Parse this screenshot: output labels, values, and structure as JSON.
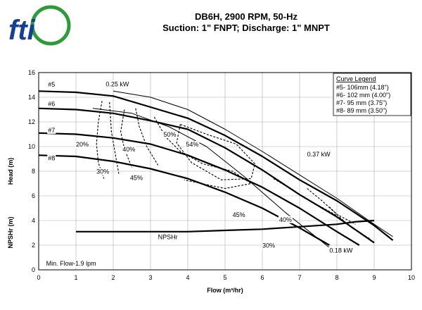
{
  "chart_data": {
    "type": "line",
    "title": "DB6H, 2900 RPM, 50-Hz",
    "subtitle": "Suction: 1\" FNPT; Discharge: 1\" MNPT",
    "xlabel": "Flow (m³/hr)",
    "ylabel": "Head (m)",
    "ylabel2": "NPSHr (m)",
    "xlim": [
      0,
      10
    ],
    "ylim": [
      0,
      16
    ],
    "xticks": [
      "0",
      "1",
      "2",
      "3",
      "4",
      "5",
      "6",
      "7",
      "8",
      "9",
      "10"
    ],
    "yticks": [
      "0",
      "2",
      "4",
      "6",
      "8",
      "10",
      "12",
      "14",
      "16"
    ],
    "grid": true,
    "legend": {
      "title": "Curve Legend",
      "entries": [
        "#5- 106mm (4.18\")",
        "#6- 102 mm (4.00\")",
        "#7- 95 mm (3.75\")",
        "#8- 89 mm (3.50\")"
      ]
    },
    "series": [
      {
        "name": "#5",
        "x": [
          0,
          1,
          2,
          3,
          4,
          5,
          6,
          7,
          8,
          9,
          9.5
        ],
        "y": [
          14.5,
          14.4,
          14.1,
          13.2,
          12.3,
          10.9,
          9.2,
          7.3,
          5.6,
          3.6,
          2.4
        ]
      },
      {
        "name": "#6",
        "x": [
          0,
          1,
          2,
          3,
          4,
          5,
          6,
          7,
          8,
          9
        ],
        "y": [
          13.1,
          13.0,
          12.7,
          12.1,
          11.4,
          9.9,
          8.1,
          6.1,
          4.3,
          2.2
        ]
      },
      {
        "name": "#7",
        "x": [
          0,
          1,
          2,
          3,
          4,
          5,
          6,
          7,
          8,
          8.6
        ],
        "y": [
          11.1,
          11.0,
          10.7,
          10.2,
          9.3,
          8.1,
          6.7,
          5.0,
          3.1,
          2.0
        ]
      },
      {
        "name": "#8",
        "x": [
          0,
          1,
          2,
          3,
          4,
          5,
          6,
          7,
          7.8
        ],
        "y": [
          9.3,
          9.2,
          8.8,
          8.2,
          7.4,
          6.3,
          5.0,
          3.4,
          2.0
        ]
      },
      {
        "name": "NPSHr",
        "x": [
          1,
          2,
          3,
          4,
          5,
          6,
          7,
          8,
          8.5,
          9
        ],
        "y": [
          3.1,
          3.1,
          3.1,
          3.1,
          3.2,
          3.3,
          3.5,
          3.7,
          3.9,
          4.0
        ]
      },
      {
        "name": "0.25 kW",
        "x": [
          1.45,
          2.5,
          3.5,
          4.5,
          5.5,
          6.6,
          7.8
        ],
        "y": [
          13.1,
          12.7,
          11.6,
          10.0,
          7.6,
          4.7,
          1.8
        ]
      },
      {
        "name": "0.37 kW",
        "x": [
          2.0,
          3.0,
          4.0,
          5.0,
          6.0,
          7.0,
          8.0,
          9.0,
          9.5
        ],
        "y": [
          14.5,
          14.0,
          13.0,
          11.4,
          9.6,
          7.7,
          5.8,
          3.7,
          2.7
        ]
      }
    ],
    "efficiency_contours": [
      {
        "label": "20%",
        "x": [
          1.7,
          1.6,
          1.55,
          1.6,
          1.75
        ],
        "y": [
          13.7,
          12.0,
          10.2,
          8.7,
          7.4
        ]
      },
      {
        "label": "30%",
        "x": [
          1.9,
          1.95,
          2.05,
          2.15
        ],
        "y": [
          13.6,
          11.2,
          9.5,
          7.8
        ]
      },
      {
        "label": "40%",
        "x": [
          2.3,
          2.2,
          2.3,
          2.5
        ],
        "y": [
          13.0,
          11.2,
          9.8,
          8.3
        ]
      },
      {
        "label": "45%",
        "x": [
          2.6,
          2.7,
          2.9,
          3.2
        ],
        "y": [
          13.1,
          11.6,
          10.0,
          8.5
        ]
      },
      {
        "label": "50%",
        "x": [
          3.1,
          3.4,
          3.8,
          4.4,
          5.2,
          5.7,
          5.0,
          3.9
        ],
        "y": [
          12.4,
          10.8,
          9.6,
          8.6,
          8.0,
          7.0,
          6.6,
          7.3
        ]
      },
      {
        "label": "54%",
        "x": [
          3.8,
          4.5,
          5.3,
          5.8,
          5.7,
          4.9,
          4.1,
          3.7,
          3.8
        ],
        "y": [
          11.8,
          11.0,
          10.2,
          8.6,
          7.4,
          7.3,
          8.7,
          10.3,
          11.8
        ]
      },
      {
        "label": "45%",
        "x": [
          6.3,
          6.8,
          7.4,
          8.0
        ],
        "y": [
          7.4,
          6.5,
          5.4,
          4.4
        ]
      },
      {
        "label": "40%",
        "x": [
          7.2,
          7.6,
          8.0,
          8.5
        ],
        "y": [
          6.6,
          5.6,
          4.5,
          3.7
        ]
      },
      {
        "label": "30%",
        "x": [
          7.8,
          8.1,
          8.4,
          8.9
        ],
        "y": [
          5.1,
          4.2,
          3.4,
          2.5
        ]
      }
    ],
    "annotations": [
      {
        "text": "0.25 kW",
        "x": 1.8,
        "y": 14.9
      },
      {
        "text": "0.37 kW",
        "x": 7.2,
        "y": 9.2
      },
      {
        "text": "0.18 kW",
        "x": 7.8,
        "y": 1.4
      },
      {
        "text": "NPSHr",
        "x": 3.2,
        "y": 2.5
      },
      {
        "text": "Min. Flow-1.9 lpm",
        "x": 0.2,
        "y": 0.35
      },
      {
        "text": "#5",
        "x": 0.25,
        "y": 14.85
      },
      {
        "text": "#6",
        "x": 0.25,
        "y": 13.3
      },
      {
        "text": "#7",
        "x": 0.25,
        "y": 11.15
      },
      {
        "text": "#8",
        "x": 0.25,
        "y": 8.9
      }
    ]
  },
  "contour_labels": [
    {
      "text": "20%",
      "x": 1.0,
      "y": 10.0
    },
    {
      "text": "30%",
      "x": 1.55,
      "y": 7.8
    },
    {
      "text": "40%",
      "x": 2.25,
      "y": 9.6
    },
    {
      "text": "45%",
      "x": 2.45,
      "y": 7.3
    },
    {
      "text": "50%",
      "x": 3.35,
      "y": 10.8
    },
    {
      "text": "54%",
      "x": 3.95,
      "y": 10.0
    },
    {
      "text": "45%",
      "x": 5.2,
      "y": 4.3
    },
    {
      "text": "40%",
      "x": 6.45,
      "y": 3.9
    },
    {
      "text": "30%",
      "x": 6.0,
      "y": 1.8
    }
  ],
  "logo": {
    "text": "fti"
  }
}
